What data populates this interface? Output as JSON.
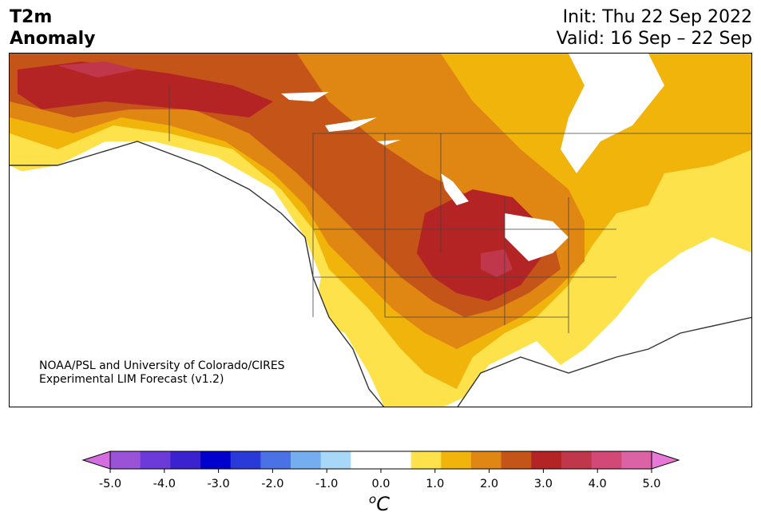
{
  "title": {
    "line1": "T2m",
    "line2": "Anomaly"
  },
  "dates": {
    "init": "Init: Thu 22 Sep 2022",
    "valid": "Valid: 16 Sep – 22 Sep"
  },
  "credit": {
    "line1": "NOAA/PSL and University of Colorado/CIRES",
    "line2": "Experimental LIM Forecast (v1.2)"
  },
  "colorbar": {
    "ticks": [
      "-5.0",
      "-4.0",
      "-3.0",
      "-2.0",
      "-1.0",
      "0.0",
      "1.0",
      "2.0",
      "3.0",
      "4.0",
      "5.0"
    ],
    "unit_sup": "o",
    "unit": "C",
    "colors": [
      "#d46ee0",
      "#9a52d8",
      "#6b3ad8",
      "#3a22d0",
      "#0000cc",
      "#2a3ad8",
      "#4a72e6",
      "#74aef0",
      "#a8d8f8",
      "#ffffff",
      "#ffffff",
      "#fde24c",
      "#f0b40a",
      "#e08612",
      "#c45418",
      "#b42424",
      "#c0364a",
      "#d24876",
      "#dc62a6",
      "#e878d8"
    ]
  },
  "map": {
    "region": "North America",
    "field": "2m temperature anomaly"
  }
}
